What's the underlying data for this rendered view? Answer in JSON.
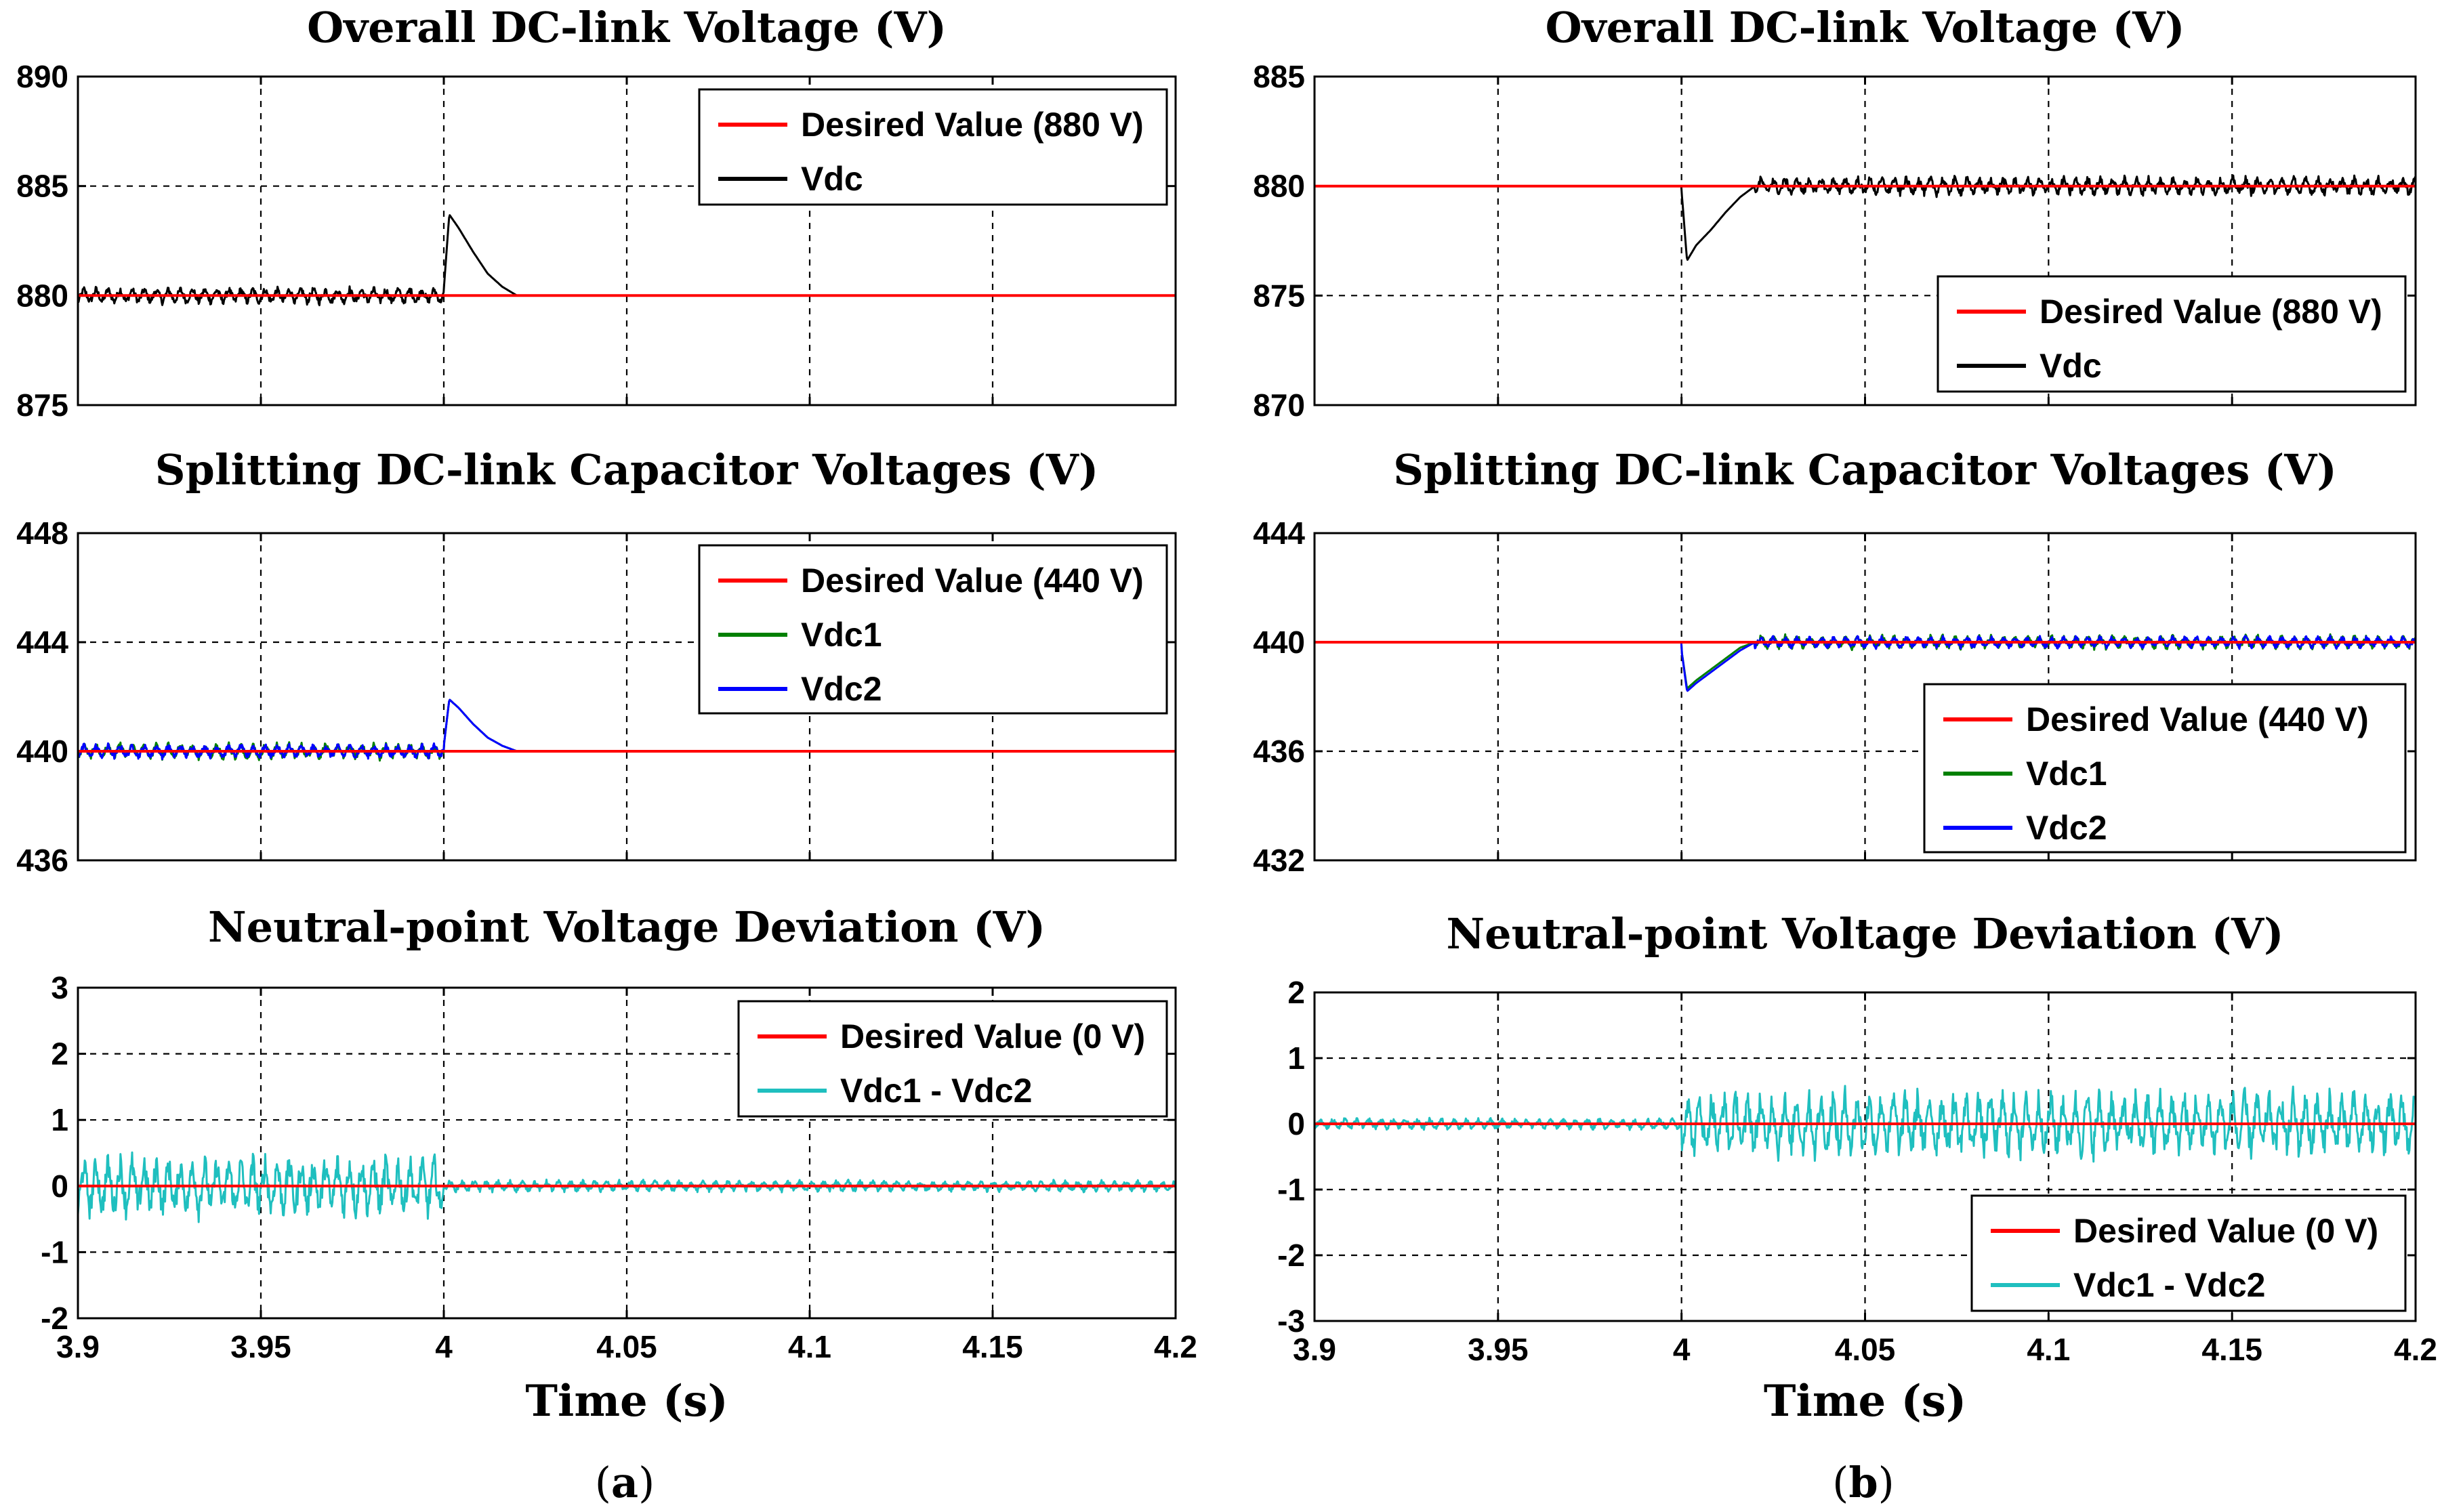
{
  "colors": {
    "desired": "#ff0000",
    "vdc": "#000000",
    "vdc1": "#008000",
    "vdc2": "#0000ff",
    "deviation": "#1fbfbf"
  },
  "captions": [
    {
      "open": "(",
      "letter": "a",
      "close": ")"
    },
    {
      "open": "(",
      "letter": "b",
      "close": ")"
    }
  ],
  "chart_data": [
    {
      "id": "a1",
      "type": "line",
      "title": "Overall DC-link Voltage (V)",
      "xlabel": "",
      "ylabel": "",
      "xlim": [
        3.9,
        4.2
      ],
      "ylim": [
        875,
        890
      ],
      "xticks": [
        3.9,
        3.95,
        4,
        4.05,
        4.1,
        4.15,
        4.2
      ],
      "xticklabels": [
        "",
        "",
        "",
        "",
        "",
        "",
        ""
      ],
      "yticks": [
        875,
        880,
        885,
        890
      ],
      "yticklabels": [
        "875",
        "880",
        "885",
        "890"
      ],
      "grid": true,
      "legend_position": "top-right",
      "series": [
        {
          "name": "Desired Value (880 V)",
          "color": "#ff0000",
          "width": 4,
          "x": [
            3.9,
            4.2
          ],
          "y": [
            880,
            880
          ]
        },
        {
          "name": "Vdc",
          "color": "#000000",
          "width": 3,
          "x": [
            3.9,
            3.99999,
            4.0,
            4.0015,
            4.004,
            4.008,
            4.012,
            4.016,
            4.02,
            4.2
          ],
          "y": [
            880,
            880,
            880.3,
            883.7,
            883.1,
            882.0,
            881.0,
            880.4,
            880,
            880
          ],
          "ripple": [
            {
              "from": 3.9,
              "to": 4.0,
              "amp": 0.45,
              "period": 0.0033
            }
          ]
        }
      ]
    },
    {
      "id": "a2",
      "type": "line",
      "title": "Splitting DC-link Capacitor Voltages (V)",
      "xlabel": "",
      "ylabel": "",
      "xlim": [
        3.9,
        4.2
      ],
      "ylim": [
        436,
        448
      ],
      "xticks": [
        3.9,
        3.95,
        4,
        4.05,
        4.1,
        4.15,
        4.2
      ],
      "xticklabels": [
        "",
        "",
        "",
        "",
        "",
        "",
        ""
      ],
      "yticks": [
        436,
        440,
        444,
        448
      ],
      "yticklabels": [
        "436",
        "440",
        "444",
        "448"
      ],
      "grid": true,
      "legend_position": "top-right",
      "series": [
        {
          "name": "Desired Value (440 V)",
          "color": "#ff0000",
          "width": 4,
          "x": [
            3.9,
            4.2
          ],
          "y": [
            440,
            440
          ]
        },
        {
          "name": "Vdc1",
          "color": "#008000",
          "width": 3,
          "x": [
            3.9,
            3.99999,
            4.0,
            4.0015,
            4.004,
            4.008,
            4.012,
            4.016,
            4.02,
            4.2
          ],
          "y": [
            440,
            440,
            440.2,
            441.9,
            441.6,
            441.0,
            440.5,
            440.2,
            440,
            440
          ],
          "ripple": [
            {
              "from": 3.9,
              "to": 4.0,
              "amp": 0.35,
              "period": 0.0033
            }
          ]
        },
        {
          "name": "Vdc2",
          "color": "#0000ff",
          "width": 3,
          "x": [
            3.9,
            3.99999,
            4.0,
            4.0015,
            4.004,
            4.008,
            4.012,
            4.016,
            4.02,
            4.2
          ],
          "y": [
            440,
            440,
            440.2,
            441.9,
            441.6,
            441.0,
            440.5,
            440.2,
            440,
            440
          ],
          "ripple": [
            {
              "from": 3.9,
              "to": 4.0,
              "amp": 0.3,
              "period": 0.0033
            }
          ]
        }
      ]
    },
    {
      "id": "a3",
      "type": "line",
      "title": "Neutral-point Voltage Deviation (V)",
      "xlabel": "Time (s)",
      "ylabel": "",
      "xlim": [
        3.9,
        4.2
      ],
      "ylim": [
        -2,
        3
      ],
      "xticks": [
        3.9,
        3.95,
        4,
        4.05,
        4.1,
        4.15,
        4.2
      ],
      "xticklabels": [
        "3.9",
        "3.95",
        "4",
        "4.05",
        "4.1",
        "4.15",
        "4.2"
      ],
      "yticks": [
        -2,
        -1,
        0,
        1,
        2,
        3
      ],
      "yticklabels": [
        "-2",
        "-1",
        "0",
        "1",
        "2",
        "3"
      ],
      "grid": true,
      "legend_position": "top-right",
      "series": [
        {
          "name": "Desired Value (0 V)",
          "color": "#ff0000",
          "width": 4,
          "x": [
            3.9,
            4.2
          ],
          "y": [
            0,
            0
          ]
        },
        {
          "name": "Vdc1 - Vdc2",
          "color": "#1fbfbf",
          "width": 3,
          "x": [
            3.9,
            4.2
          ],
          "y": [
            0,
            0
          ],
          "ripple": [
            {
              "from": 3.9,
              "to": 4.0,
              "amp": 0.55,
              "period": 0.0033
            },
            {
              "from": 4.0,
              "to": 4.2,
              "amp": 0.1,
              "period": 0.0033
            }
          ]
        }
      ]
    },
    {
      "id": "b1",
      "type": "line",
      "title": "Overall DC-link Voltage (V)",
      "xlabel": "",
      "ylabel": "",
      "xlim": [
        3.9,
        4.2
      ],
      "ylim": [
        870,
        885
      ],
      "xticks": [
        3.9,
        3.95,
        4,
        4.05,
        4.1,
        4.15,
        4.2
      ],
      "xticklabels": [
        "",
        "",
        "",
        "",
        "",
        "",
        ""
      ],
      "yticks": [
        870,
        875,
        880,
        885
      ],
      "yticklabels": [
        "870",
        "875",
        "880",
        "885"
      ],
      "grid": true,
      "legend_position": "bottom-right",
      "series": [
        {
          "name": "Desired Value (880 V)",
          "color": "#ff0000",
          "width": 4,
          "x": [
            3.9,
            4.2
          ],
          "y": [
            880,
            880
          ]
        },
        {
          "name": "Vdc",
          "color": "#000000",
          "width": 3,
          "x": [
            3.9,
            3.99999,
            4.0,
            4.0015,
            4.004,
            4.008,
            4.012,
            4.016,
            4.02,
            4.2
          ],
          "y": [
            880,
            880,
            879.8,
            876.6,
            877.3,
            878.0,
            878.8,
            879.5,
            880,
            880
          ],
          "ripple": [
            {
              "from": 4.02,
              "to": 4.2,
              "amp": 0.5,
              "period": 0.0033
            }
          ]
        }
      ]
    },
    {
      "id": "b2",
      "type": "line",
      "title": "Splitting DC-link Capacitor Voltages (V)",
      "xlabel": "",
      "ylabel": "",
      "xlim": [
        3.9,
        4.2
      ],
      "ylim": [
        432,
        444
      ],
      "xticks": [
        3.9,
        3.95,
        4,
        4.05,
        4.1,
        4.15,
        4.2
      ],
      "xticklabels": [
        "",
        "",
        "",
        "",
        "",
        "",
        ""
      ],
      "yticks": [
        432,
        436,
        440,
        444
      ],
      "yticklabels": [
        "432",
        "436",
        "440",
        "444"
      ],
      "grid": true,
      "legend_position": "bottom-right",
      "series": [
        {
          "name": "Desired Value (440 V)",
          "color": "#ff0000",
          "width": 4,
          "x": [
            3.9,
            4.2
          ],
          "y": [
            440,
            440
          ]
        },
        {
          "name": "Vdc1",
          "color": "#008000",
          "width": 3,
          "x": [
            3.9,
            3.99999,
            4.0,
            4.0015,
            4.004,
            4.008,
            4.012,
            4.016,
            4.02,
            4.2
          ],
          "y": [
            440,
            440,
            439.7,
            438.3,
            438.6,
            439.0,
            439.4,
            439.8,
            440,
            440
          ],
          "ripple": [
            {
              "from": 4.02,
              "to": 4.2,
              "amp": 0.3,
              "period": 0.0033
            }
          ]
        },
        {
          "name": "Vdc2",
          "color": "#0000ff",
          "width": 3,
          "x": [
            3.9,
            3.99999,
            4.0,
            4.0015,
            4.004,
            4.008,
            4.012,
            4.016,
            4.02,
            4.2
          ],
          "y": [
            440,
            440,
            439.7,
            438.2,
            438.5,
            438.9,
            439.3,
            439.7,
            440,
            440
          ],
          "ripple": [
            {
              "from": 4.02,
              "to": 4.2,
              "amp": 0.25,
              "period": 0.0033
            }
          ]
        }
      ]
    },
    {
      "id": "b3",
      "type": "line",
      "title": "Neutral-point Voltage Deviation (V)",
      "xlabel": "Time (s)",
      "ylabel": "",
      "xlim": [
        3.9,
        4.2
      ],
      "ylim": [
        -3,
        2
      ],
      "xticks": [
        3.9,
        3.95,
        4,
        4.05,
        4.1,
        4.15,
        4.2
      ],
      "xticklabels": [
        "3.9",
        "3.95",
        "4",
        "4.05",
        "4.1",
        "4.15",
        "4.2"
      ],
      "yticks": [
        -3,
        -2,
        -1,
        0,
        1,
        2
      ],
      "yticklabels": [
        "-3",
        "-2",
        "-1",
        "0",
        "1",
        "2"
      ],
      "grid": true,
      "legend_position": "bottom-right",
      "series": [
        {
          "name": "Desired Value (0 V)",
          "color": "#ff0000",
          "width": 4,
          "x": [
            3.9,
            4.2
          ],
          "y": [
            0,
            0
          ]
        },
        {
          "name": "Vdc1 - Vdc2",
          "color": "#1fbfbf",
          "width": 3,
          "x": [
            3.9,
            4.2
          ],
          "y": [
            0,
            0
          ],
          "ripple": [
            {
              "from": 3.9,
              "to": 4.0,
              "amp": 0.1,
              "period": 0.0033
            },
            {
              "from": 4.0,
              "to": 4.2,
              "amp": 0.6,
              "period": 0.0033
            }
          ]
        }
      ]
    }
  ]
}
